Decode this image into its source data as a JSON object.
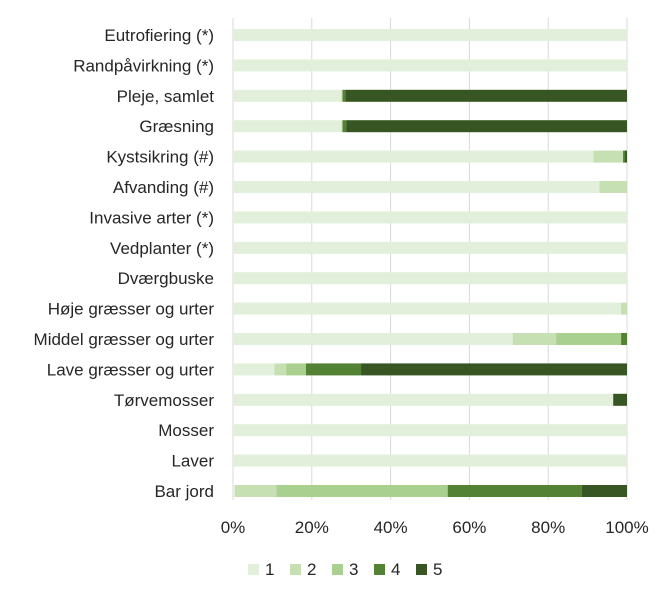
{
  "chart_data": {
    "type": "bar",
    "orientation": "horizontal",
    "stacked": "percent",
    "categories": [
      "Eutrofiering (*)",
      "Randpåvirkning (*)",
      "Pleje, samlet",
      "Græsning",
      "Kystsikring (#)",
      "Afvanding (#)",
      "Invasive arter (*)",
      "Vedplanter (*)",
      "Dværgbuske",
      "Høje græsser og urter",
      "Middel græsser og urter",
      "Lave græsser og urter",
      "Tørvemosser",
      "Mosser",
      "Laver",
      "Bar jord"
    ],
    "series": [
      {
        "name": "1",
        "color": "#e2efda",
        "values": [
          100,
          100,
          27.5,
          27.5,
          91.5,
          93,
          100,
          100,
          100,
          98.5,
          71,
          10.5,
          96.5,
          100,
          100,
          0.5
        ]
      },
      {
        "name": "2",
        "color": "#c6e0b4",
        "values": [
          0,
          0,
          0.3,
          0.3,
          7.5,
          7,
          0,
          0,
          0,
          1.5,
          11,
          3,
          0,
          0,
          0,
          10.5
        ]
      },
      {
        "name": "3",
        "color": "#a9d08e",
        "values": [
          0,
          0,
          0,
          0,
          0,
          0,
          0,
          0,
          0,
          0,
          16.5,
          5,
          0,
          0,
          0,
          43.5
        ]
      },
      {
        "name": "4",
        "color": "#548235",
        "values": [
          0,
          0,
          0.7,
          1,
          0.5,
          0,
          0,
          0,
          0,
          0,
          1.5,
          14,
          0,
          0,
          0,
          34
        ]
      },
      {
        "name": "5",
        "color": "#375623",
        "values": [
          0,
          0,
          71.5,
          71.2,
          0.5,
          0,
          0,
          0,
          0,
          0,
          0,
          67.5,
          3.5,
          0,
          0,
          11.5
        ]
      }
    ],
    "xticks": [
      "0%",
      "20%",
      "40%",
      "60%",
      "80%",
      "100%"
    ],
    "xlim": [
      0,
      100
    ],
    "grid": "vertical",
    "legend": "bottom"
  }
}
